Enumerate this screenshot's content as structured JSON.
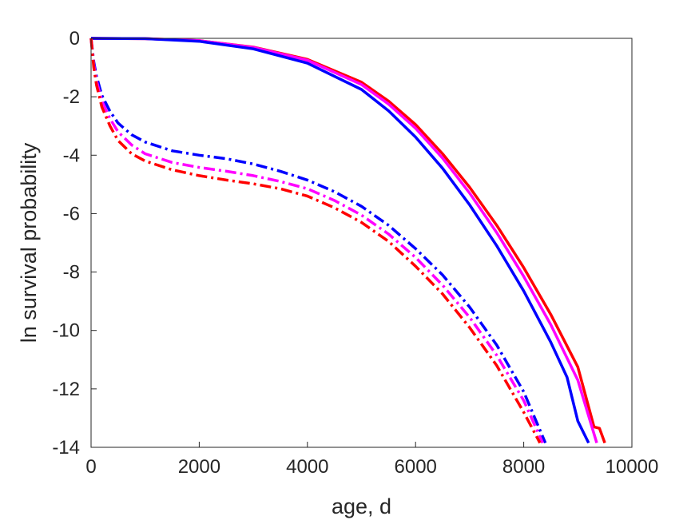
{
  "chart_data": {
    "type": "line",
    "title": "",
    "xlabel": "age, d",
    "ylabel": "ln survival probability",
    "xlim": [
      0,
      10000
    ],
    "ylim": [
      -14,
      0
    ],
    "xticks": [
      0,
      2000,
      4000,
      6000,
      8000,
      10000
    ],
    "yticks": [
      0,
      -2,
      -4,
      -6,
      -8,
      -10,
      -12,
      -14
    ],
    "x_tick_labels": [
      "0",
      "2000",
      "4000",
      "6000",
      "8000",
      "10000"
    ],
    "y_tick_labels": [
      "0",
      "-2",
      "-4",
      "-6",
      "-8",
      "-10",
      "-12",
      "-14"
    ],
    "grid": false,
    "legend": "none",
    "series": [
      {
        "color": "#ff0000",
        "style": "solid",
        "x": [
          0,
          1000,
          2000,
          3000,
          4000,
          5000,
          5500,
          6000,
          6500,
          7000,
          7500,
          8000,
          8500,
          9000,
          9300,
          9400,
          9500
        ],
        "y": [
          0,
          -0.01,
          -0.08,
          -0.3,
          -0.72,
          -1.5,
          -2.15,
          -2.95,
          -3.95,
          -5.1,
          -6.4,
          -7.85,
          -9.45,
          -11.25,
          -13.3,
          -13.35,
          -13.85
        ]
      },
      {
        "color": "#ff00ff",
        "style": "solid",
        "x": [
          0,
          1000,
          2000,
          3000,
          4000,
          5000,
          5500,
          6000,
          6500,
          7000,
          7500,
          8000,
          8500,
          9000,
          9350
        ],
        "y": [
          0,
          -0.01,
          -0.08,
          -0.31,
          -0.75,
          -1.58,
          -2.25,
          -3.08,
          -4.1,
          -5.3,
          -6.65,
          -8.15,
          -9.8,
          -11.7,
          -13.85
        ]
      },
      {
        "color": "#0000ff",
        "style": "solid",
        "x": [
          0,
          1000,
          2000,
          3000,
          4000,
          5000,
          5500,
          6000,
          6500,
          7000,
          7500,
          8000,
          8500,
          8800,
          9000,
          9200
        ],
        "y": [
          0,
          -0.01,
          -0.1,
          -0.36,
          -0.85,
          -1.75,
          -2.48,
          -3.38,
          -4.45,
          -5.7,
          -7.1,
          -8.65,
          -10.4,
          -11.6,
          -13.1,
          -13.85
        ]
      },
      {
        "color": "#0000ff",
        "style": "dashdot",
        "x": [
          0,
          50,
          100,
          200,
          350,
          500,
          750,
          1000,
          1500,
          2000,
          2500,
          3000,
          3500,
          4000,
          4500,
          5000,
          5500,
          6000,
          6500,
          7000,
          7500,
          8000,
          8400
        ],
        "y": [
          0,
          -0.8,
          -1.3,
          -1.95,
          -2.5,
          -2.9,
          -3.3,
          -3.55,
          -3.85,
          -4.0,
          -4.12,
          -4.3,
          -4.55,
          -4.85,
          -5.25,
          -5.75,
          -6.4,
          -7.2,
          -8.1,
          -9.2,
          -10.5,
          -12.1,
          -13.85
        ]
      },
      {
        "color": "#ff00ff",
        "style": "dashdot",
        "x": [
          0,
          50,
          100,
          200,
          350,
          500,
          750,
          1000,
          1500,
          2000,
          2500,
          3000,
          3500,
          4000,
          4500,
          5000,
          5500,
          6000,
          6500,
          7000,
          7500,
          8000,
          8350
        ],
        "y": [
          0,
          -0.9,
          -1.45,
          -2.15,
          -2.75,
          -3.2,
          -3.65,
          -3.95,
          -4.25,
          -4.42,
          -4.55,
          -4.7,
          -4.9,
          -5.15,
          -5.55,
          -6.05,
          -6.7,
          -7.5,
          -8.45,
          -9.55,
          -10.85,
          -12.4,
          -13.85
        ]
      },
      {
        "color": "#ff0000",
        "style": "dashdot",
        "x": [
          0,
          50,
          100,
          200,
          350,
          500,
          750,
          1000,
          1500,
          2000,
          2500,
          3000,
          3500,
          4000,
          4500,
          5000,
          5500,
          6000,
          6500,
          7000,
          7500,
          8000,
          8300
        ],
        "y": [
          0,
          -1.0,
          -1.6,
          -2.35,
          -3.0,
          -3.5,
          -3.95,
          -4.2,
          -4.5,
          -4.7,
          -4.85,
          -4.98,
          -5.15,
          -5.4,
          -5.8,
          -6.3,
          -6.95,
          -7.8,
          -8.75,
          -9.9,
          -11.2,
          -12.8,
          -13.85
        ]
      }
    ]
  }
}
